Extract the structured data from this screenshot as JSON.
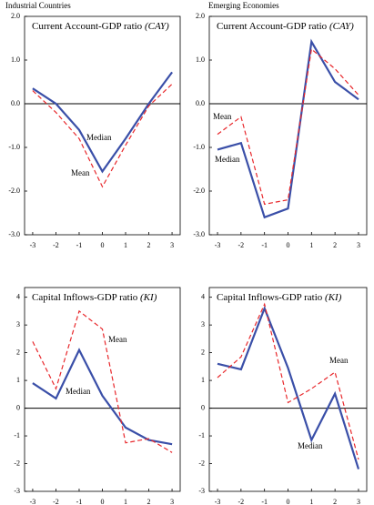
{
  "panel_groups": [
    "Industrial Countries",
    "Emerging Economies"
  ],
  "chart_data": [
    {
      "type": "line",
      "title": "Current Account-GDP ratio",
      "title_abbr": "(CAY)",
      "x": [
        -3,
        -2,
        -1,
        0,
        1,
        2,
        3
      ],
      "xlim": [
        -3.35,
        3.35
      ],
      "xticks": [
        -3,
        -2,
        -1,
        0,
        1,
        2,
        3
      ],
      "ylim": [
        -3,
        2
      ],
      "yticks": [
        {
          "value": 2,
          "label": "2.0"
        },
        {
          "value": 1,
          "label": "1.0"
        },
        {
          "value": 0,
          "label": "0.0"
        },
        {
          "value": -1,
          "label": "-1.0"
        },
        {
          "value": -2,
          "label": "-2.0"
        },
        {
          "value": -3,
          "label": "-3.0"
        }
      ],
      "series": [
        {
          "name": "Median",
          "color": "#3a4fa8",
          "values": [
            0.35,
            0.0,
            -0.6,
            -1.55,
            -0.8,
            0.0,
            0.72
          ]
        },
        {
          "name": "Mean",
          "color": "#e8272b",
          "dashed": true,
          "values": [
            0.3,
            -0.2,
            -0.8,
            -1.9,
            -0.95,
            -0.05,
            0.45
          ]
        }
      ]
    },
    {
      "type": "line",
      "title": "Current Account-GDP ratio",
      "title_abbr": "(CAY)",
      "x": [
        -3,
        -2,
        -1,
        0,
        1,
        2,
        3
      ],
      "xlim": [
        -3.35,
        3.35
      ],
      "xticks": [
        -3,
        -2,
        -1,
        0,
        1,
        2,
        3
      ],
      "ylim": [
        -3,
        2
      ],
      "yticks": [
        {
          "value": 2,
          "label": "2.0"
        },
        {
          "value": 1,
          "label": "1.0"
        },
        {
          "value": 0,
          "label": "0.0"
        },
        {
          "value": -1,
          "label": "-1.0"
        },
        {
          "value": -2,
          "label": "-2.0"
        },
        {
          "value": -3,
          "label": "-3.0"
        }
      ],
      "series": [
        {
          "name": "Median",
          "color": "#3a4fa8",
          "values": [
            -1.05,
            -0.9,
            -2.6,
            -2.4,
            1.42,
            0.5,
            0.1
          ]
        },
        {
          "name": "Mean",
          "color": "#e8272b",
          "dashed": true,
          "values": [
            -0.7,
            -0.3,
            -2.3,
            -2.2,
            1.25,
            0.8,
            0.2
          ]
        }
      ]
    },
    {
      "type": "line",
      "title": "Capital Inflows-GDP ratio",
      "title_abbr": "(KI)",
      "x": [
        -3,
        -2,
        -1,
        0,
        1,
        2,
        3
      ],
      "xlim": [
        -3.35,
        3.35
      ],
      "xticks": [
        -3,
        -2,
        -1,
        0,
        1,
        2,
        3
      ],
      "ylim": [
        -3,
        4.35
      ],
      "yticks": [
        4,
        3,
        2,
        1,
        0,
        -1,
        -2,
        -3
      ],
      "series": [
        {
          "name": "Median",
          "color": "#3a4fa8",
          "values": [
            0.9,
            0.35,
            2.1,
            0.45,
            -0.7,
            -1.15,
            -1.3
          ]
        },
        {
          "name": "Mean",
          "color": "#e8272b",
          "dashed": true,
          "values": [
            2.4,
            0.7,
            3.5,
            2.85,
            -1.25,
            -1.1,
            -1.6
          ]
        }
      ]
    },
    {
      "type": "line",
      "title": "Capital Inflows-GDP ratio",
      "title_abbr": "(KI)",
      "x": [
        -3,
        -2,
        -1,
        0,
        1,
        2,
        3
      ],
      "xlim": [
        -3.35,
        3.35
      ],
      "xticks": [
        -3,
        -2,
        -1,
        0,
        1,
        2,
        3
      ],
      "ylim": [
        -3,
        4.35
      ],
      "yticks": [
        4,
        3,
        2,
        1,
        0,
        -1,
        -2,
        -3
      ],
      "series": [
        {
          "name": "Median",
          "color": "#3a4fa8",
          "values": [
            1.6,
            1.4,
            3.6,
            1.45,
            -1.15,
            0.52,
            -2.2
          ]
        },
        {
          "name": "Mean",
          "color": "#e8272b",
          "dashed": true,
          "values": [
            1.1,
            1.85,
            3.75,
            0.2,
            0.7,
            1.3,
            -1.85
          ]
        }
      ]
    }
  ]
}
